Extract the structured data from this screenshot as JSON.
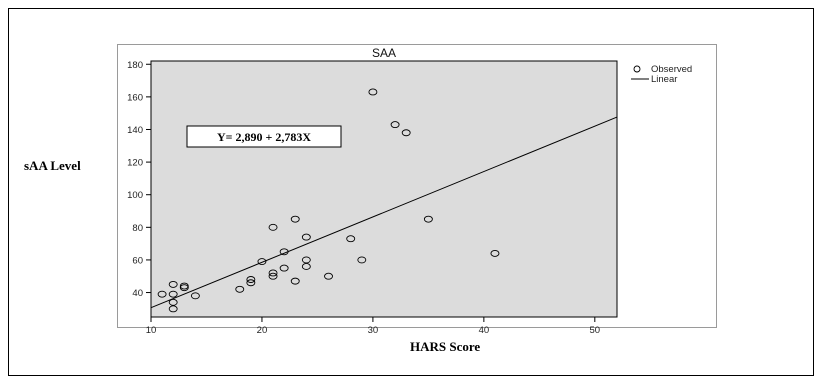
{
  "chart_data": {
    "type": "scatter",
    "title": "SAA",
    "xlabel": "HARS Score",
    "ylabel": "sAA Level",
    "xlim": [
      10,
      52
    ],
    "ylim": [
      25,
      182
    ],
    "x_ticks": [
      10,
      20,
      30,
      40,
      50
    ],
    "y_ticks": [
      40,
      60,
      80,
      100,
      120,
      140,
      160,
      180
    ],
    "legend": [
      "Observed",
      "Linear"
    ],
    "legend_position": "top-right, outside plot",
    "equation": "Y= 2,890 + 2,783X",
    "plot_background": "#dcdcdc",
    "series": [
      {
        "name": "Observed",
        "points": [
          [
            11,
            39
          ],
          [
            12,
            45
          ],
          [
            12,
            39
          ],
          [
            12,
            34
          ],
          [
            12,
            30
          ],
          [
            13,
            44
          ],
          [
            13,
            43
          ],
          [
            14,
            38
          ],
          [
            18,
            42
          ],
          [
            19,
            48
          ],
          [
            19,
            46
          ],
          [
            20,
            59
          ],
          [
            21,
            80
          ],
          [
            21,
            52
          ],
          [
            21,
            50
          ],
          [
            22,
            65
          ],
          [
            22,
            55
          ],
          [
            23,
            85
          ],
          [
            23,
            47
          ],
          [
            24,
            74
          ],
          [
            24,
            60
          ],
          [
            24,
            56
          ],
          [
            26,
            50
          ],
          [
            28,
            73
          ],
          [
            29,
            60
          ],
          [
            30,
            163
          ],
          [
            32,
            143
          ],
          [
            33,
            138
          ],
          [
            35,
            85
          ],
          [
            41,
            64
          ]
        ]
      },
      {
        "name": "Linear",
        "line": [
          [
            10,
            30.7
          ],
          [
            52,
            147.6
          ]
        ]
      }
    ]
  }
}
